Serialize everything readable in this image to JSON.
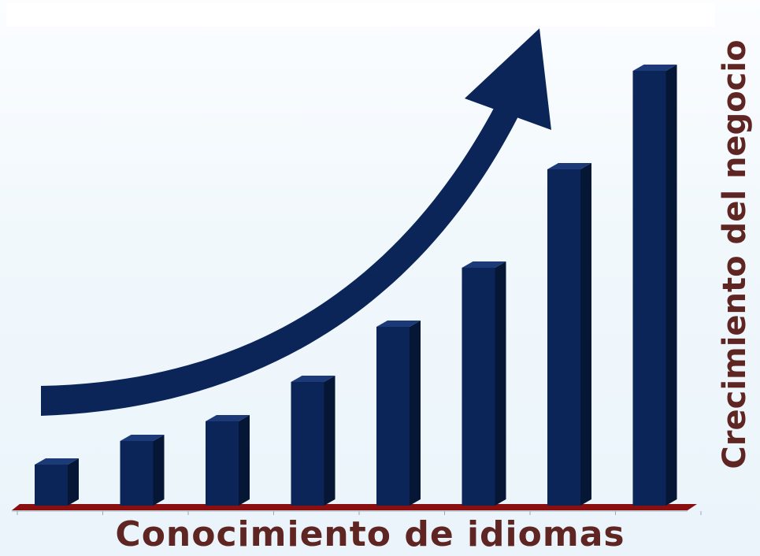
{
  "chart_data": {
    "type": "bar",
    "categories": [
      "",
      "",
      "",
      "",
      "",
      "",
      "",
      ""
    ],
    "values": [
      1,
      1.6,
      2.1,
      3.1,
      4.5,
      6.0,
      8.5,
      11.0
    ],
    "title": "",
    "xlabel": "Conocimiento de idiomas",
    "ylabel": "Crecimiento del negocio",
    "ylim": [
      0,
      11.5
    ],
    "grid": false,
    "legend": "none",
    "colors": {
      "bar": "#0b2559",
      "bar_side": "#061635",
      "bar_top": "#1d3a78",
      "axis_base": "#8a0f10",
      "arrow": "#0b2559",
      "label": "#5f2522"
    },
    "annotation_arrow": "growth-trend-arrow"
  }
}
